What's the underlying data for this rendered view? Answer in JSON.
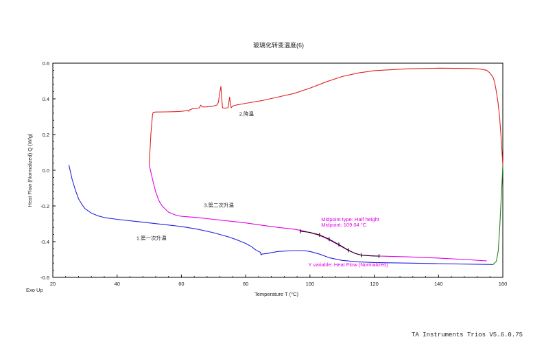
{
  "chart_data": {
    "type": "line",
    "title": "玻璃化转变温度(6)",
    "xlabel": "Temperature T (°C)",
    "ylabel": "Heat Flow (Normalized) Q (W/g)",
    "exo_label": "Exo Up",
    "xlim": [
      20,
      160
    ],
    "ylim": [
      -0.6,
      0.6
    ],
    "x_ticks": [
      20,
      40,
      60,
      80,
      100,
      120,
      140,
      160
    ],
    "y_ticks": [
      -0.6,
      -0.4,
      -0.2,
      0.0,
      0.2,
      0.4,
      0.6
    ],
    "x_tick_labels": [
      "20",
      "40",
      "60",
      "80",
      "100",
      "120",
      "140",
      "160"
    ],
    "y_tick_labels": [
      "-0.6",
      "-0.4",
      "-0.2",
      "0.0",
      "0.2",
      "0.4",
      "0.6"
    ],
    "grid": false,
    "series": [
      {
        "name": "1.第一次升温",
        "color": "#2020e0",
        "points": [
          [
            25,
            0.03
          ],
          [
            26,
            -0.05
          ],
          [
            27,
            -0.11
          ],
          [
            28,
            -0.16
          ],
          [
            29,
            -0.19
          ],
          [
            30,
            -0.215
          ],
          [
            32,
            -0.24
          ],
          [
            34,
            -0.255
          ],
          [
            36,
            -0.265
          ],
          [
            40,
            -0.275
          ],
          [
            45,
            -0.285
          ],
          [
            50,
            -0.295
          ],
          [
            55,
            -0.305
          ],
          [
            60,
            -0.315
          ],
          [
            65,
            -0.33
          ],
          [
            70,
            -0.35
          ],
          [
            75,
            -0.375
          ],
          [
            78,
            -0.395
          ],
          [
            80,
            -0.41
          ],
          [
            82,
            -0.43
          ],
          [
            83,
            -0.445
          ],
          [
            84,
            -0.455
          ],
          [
            84.6,
            -0.46
          ],
          [
            84.8,
            -0.475
          ],
          [
            85,
            -0.47
          ],
          [
            87,
            -0.465
          ],
          [
            90,
            -0.455
          ],
          [
            95,
            -0.45
          ],
          [
            98,
            -0.45
          ],
          [
            100,
            -0.455
          ],
          [
            103,
            -0.47
          ],
          [
            106,
            -0.49
          ],
          [
            110,
            -0.505
          ],
          [
            115,
            -0.513
          ],
          [
            120,
            -0.517
          ],
          [
            130,
            -0.52
          ],
          [
            140,
            -0.523
          ],
          [
            150,
            -0.526
          ],
          [
            157,
            -0.528
          ]
        ]
      },
      {
        "name": "2.降温",
        "color": "#e02020",
        "points": [
          [
            160,
            0.03
          ],
          [
            159.6,
            0.15
          ],
          [
            159,
            0.3
          ],
          [
            158.5,
            0.38
          ],
          [
            158,
            0.44
          ],
          [
            157.5,
            0.49
          ],
          [
            157,
            0.52
          ],
          [
            156,
            0.545
          ],
          [
            155,
            0.56
          ],
          [
            153,
            0.567
          ],
          [
            150,
            0.57
          ],
          [
            140,
            0.572
          ],
          [
            130,
            0.568
          ],
          [
            120,
            0.558
          ],
          [
            115,
            0.545
          ],
          [
            110,
            0.525
          ],
          [
            105,
            0.495
          ],
          [
            100,
            0.46
          ],
          [
            95,
            0.43
          ],
          [
            90,
            0.41
          ],
          [
            85,
            0.39
          ],
          [
            80,
            0.375
          ],
          [
            77,
            0.365
          ],
          [
            76,
            0.36
          ],
          [
            75.5,
            0.35
          ],
          [
            75.3,
            0.37
          ],
          [
            75,
            0.41
          ],
          [
            74.7,
            0.37
          ],
          [
            74.5,
            0.35
          ],
          [
            73.5,
            0.348
          ],
          [
            72.8,
            0.35
          ],
          [
            72.5,
            0.41
          ],
          [
            72.3,
            0.47
          ],
          [
            72,
            0.44
          ],
          [
            71.5,
            0.38
          ],
          [
            71,
            0.365
          ],
          [
            70,
            0.36
          ],
          [
            68,
            0.355
          ],
          [
            66.5,
            0.355
          ],
          [
            66,
            0.365
          ],
          [
            65.6,
            0.35
          ],
          [
            65,
            0.348
          ],
          [
            64,
            0.345
          ],
          [
            63.5,
            0.348
          ],
          [
            63,
            0.34
          ],
          [
            62.5,
            0.338
          ],
          [
            62.3,
            0.33
          ],
          [
            62,
            0.335
          ],
          [
            60,
            0.33
          ],
          [
            58,
            0.328
          ],
          [
            55,
            0.327
          ],
          [
            52,
            0.326
          ],
          [
            51.2,
            0.324
          ],
          [
            51,
            0.31
          ],
          [
            50.5,
            0.2
          ],
          [
            50.2,
            0.1
          ],
          [
            50,
            0.03
          ]
        ]
      },
      {
        "name": "3.第二次升温",
        "color": "#e000e0",
        "points": [
          [
            50,
            0.03
          ],
          [
            51,
            -0.05
          ],
          [
            52,
            -0.12
          ],
          [
            53,
            -0.17
          ],
          [
            54,
            -0.2
          ],
          [
            56,
            -0.235
          ],
          [
            58,
            -0.25
          ],
          [
            60,
            -0.258
          ],
          [
            65,
            -0.265
          ],
          [
            70,
            -0.275
          ],
          [
            75,
            -0.285
          ],
          [
            80,
            -0.295
          ],
          [
            85,
            -0.308
          ],
          [
            90,
            -0.32
          ],
          [
            95,
            -0.33
          ],
          [
            98,
            -0.34
          ],
          [
            100,
            -0.35
          ],
          [
            103,
            -0.365
          ],
          [
            106,
            -0.39
          ],
          [
            109,
            -0.42
          ],
          [
            112,
            -0.45
          ],
          [
            114,
            -0.465
          ],
          [
            116,
            -0.475
          ],
          [
            120,
            -0.48
          ],
          [
            130,
            -0.485
          ],
          [
            140,
            -0.492
          ],
          [
            150,
            -0.502
          ],
          [
            155,
            -0.508
          ]
        ]
      },
      {
        "name": "",
        "color": "#208020",
        "points": [
          [
            157,
            -0.528
          ],
          [
            158,
            -0.51
          ],
          [
            158.6,
            -0.45
          ],
          [
            159.1,
            -0.3
          ],
          [
            159.5,
            -0.15
          ],
          [
            159.8,
            -0.05
          ],
          [
            160,
            0.03
          ]
        ]
      }
    ],
    "analysis_line": {
      "color": "#000000",
      "points": [
        [
          97,
          -0.342
        ],
        [
          100,
          -0.348
        ],
        [
          103,
          -0.362
        ],
        [
          106,
          -0.386
        ],
        [
          109,
          -0.416
        ],
        [
          112,
          -0.448
        ],
        [
          114,
          -0.466
        ],
        [
          116,
          -0.476
        ],
        [
          119,
          -0.48
        ],
        [
          121.5,
          -0.481
        ]
      ],
      "tick_x": [
        97,
        103,
        106,
        109,
        112,
        116,
        121.5
      ]
    },
    "annotations": [
      {
        "text": "2.降温",
        "x": 78,
        "y": 0.305,
        "style": "black"
      },
      {
        "text": "3.第二次升温",
        "x": 67,
        "y": -0.205,
        "style": "black"
      },
      {
        "text": "1.第一次升温",
        "x": 46,
        "y": -0.39,
        "style": "black"
      },
      {
        "text": "Midpoint type: Half height",
        "x": 103.5,
        "y": -0.285,
        "style": "magenta"
      },
      {
        "text": "Midpoint: 109.04 °C",
        "x": 103.5,
        "y": -0.315,
        "style": "magenta"
      },
      {
        "text": "Y variable: Heat Flow (Normalized)",
        "x": 99.5,
        "y": -0.538,
        "style": "magenta"
      }
    ]
  },
  "footer": {
    "software": "TA Instruments Trios V5.6.0.75"
  }
}
